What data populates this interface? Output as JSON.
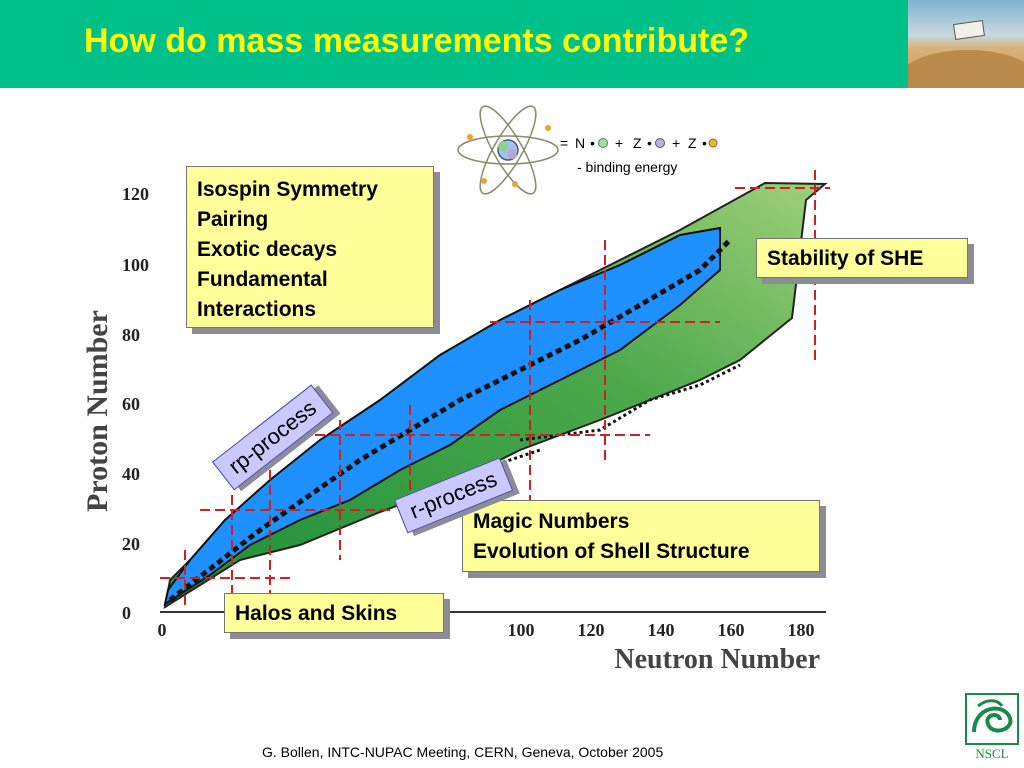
{
  "title": "How do mass measurements contribute?",
  "photo": {
    "icon": "desert-vehicle-photo"
  },
  "formula": {
    "line1": [
      "=",
      "N",
      "+",
      "Z",
      "+",
      "Z"
    ],
    "line2": "-  binding energy",
    "icon": "atom-icon"
  },
  "axes": {
    "ylabel": "Proton Number",
    "xlabel": "Neutron Number",
    "y_ticks": [
      "120",
      "100",
      "80",
      "60",
      "40",
      "20",
      "0"
    ],
    "x_ticks": [
      "0",
      "100",
      "120",
      "140",
      "160",
      "180"
    ]
  },
  "boxes": {
    "isospin": [
      "Isospin Symmetry",
      "Pairing",
      "Exotic decays",
      "Fundamental",
      "Interactions"
    ],
    "stability": "Stability of SHE",
    "magic": [
      "Magic Numbers",
      "Evolution of Shell Structure"
    ],
    "halos": "Halos and Skins"
  },
  "processes": {
    "rp": "rp-process",
    "r": "r-process"
  },
  "footer": "G. Bollen, INTC-NUPAC Meeting, CERN, Geneva, October 2005",
  "logo": {
    "text": "NSCL",
    "icon": "nscl-logo-icon"
  },
  "colors": {
    "header": "#00c08a",
    "title": "#ffff00",
    "known_nuclei": "#1e90ff",
    "predicted": "#5cb85c",
    "stable": "#111111",
    "magic_lines": "#cc2222",
    "box_fill": "#ffff99",
    "process_fill": "#c9c9ff"
  }
}
